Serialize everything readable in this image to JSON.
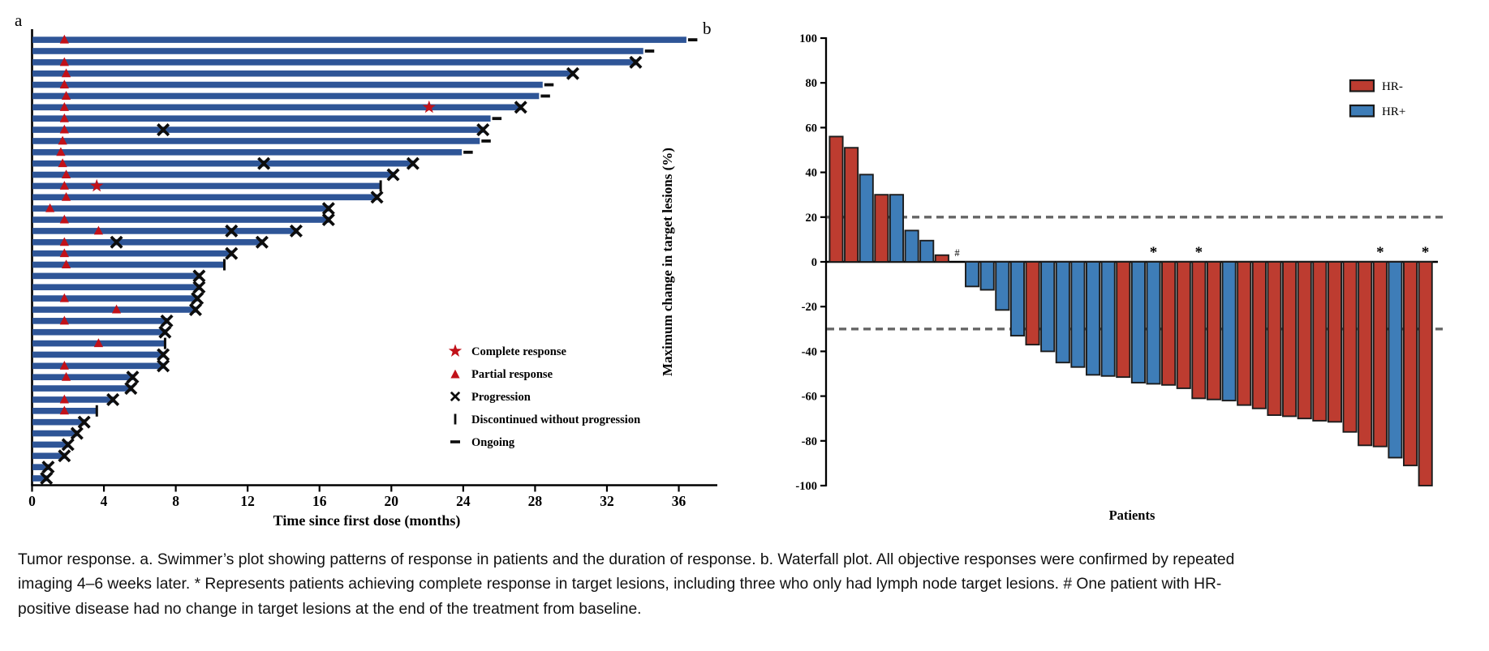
{
  "figure": {
    "panel_a_label": "a",
    "panel_b_label": "b"
  },
  "caption": {
    "text": "Tumor response. a. Swimmer’s plot showing patterns of response in patients and the duration of response. b. Waterfall plot. All objective responses were confirmed by repeated imaging 4–6 weeks later. * Represents patients achieving complete response in target lesions, including three who only had lymph node target lesions. # One patient with HR-positive disease had no change in target lesions at the end of the treatment from baseline."
  },
  "chart_data": [
    {
      "type": "bar",
      "subtype": "swimmer",
      "orientation": "horizontal",
      "xlabel": "Time since first dose (months)",
      "xticks": [
        0,
        4,
        8,
        12,
        16,
        20,
        24,
        28,
        32,
        36
      ],
      "xlim": [
        0,
        38
      ],
      "bar_color": "#2e5597",
      "marker_color": "#c11119",
      "progression_color": "#0d0d0d",
      "legend": [
        {
          "marker": "star",
          "label": "Complete response"
        },
        {
          "marker": "triangle",
          "label": "Partial response"
        },
        {
          "marker": "x",
          "label": "Progression"
        },
        {
          "marker": "bar",
          "label": "Discontinued without progression"
        },
        {
          "marker": "dash",
          "label": "Ongoing"
        }
      ],
      "patients": [
        {
          "end": 36.4,
          "pr": 1.8,
          "ongoing": true
        },
        {
          "end": 34.0,
          "ongoing": true
        },
        {
          "end": 33.6,
          "pr": 1.8,
          "progression": [
            33.6
          ]
        },
        {
          "end": 30.1,
          "pr": 1.9,
          "progression": [
            30.1
          ]
        },
        {
          "end": 28.4,
          "pr": 1.8,
          "ongoing": true
        },
        {
          "end": 28.2,
          "pr": 1.9,
          "ongoing": true
        },
        {
          "end": 27.2,
          "pr": 1.8,
          "cr": 22.1,
          "progression": [
            27.2
          ]
        },
        {
          "end": 25.5,
          "pr": 1.8,
          "ongoing": true
        },
        {
          "end": 25.1,
          "pr": 1.8,
          "progression": [
            7.3,
            25.1
          ]
        },
        {
          "end": 24.9,
          "pr": 1.7,
          "ongoing": true
        },
        {
          "end": 23.9,
          "pr": 1.6,
          "ongoing": true
        },
        {
          "end": 21.2,
          "pr": 1.7,
          "progression": [
            12.9,
            21.2
          ]
        },
        {
          "end": 20.1,
          "pr": 1.9,
          "progression": [
            20.1
          ]
        },
        {
          "end": 19.4,
          "pr": 1.8,
          "cr": 3.6,
          "discontinued": true
        },
        {
          "end": 19.2,
          "pr": 1.9,
          "progression": [
            19.2
          ]
        },
        {
          "end": 16.5,
          "pr": 1.0,
          "progression": [
            16.5
          ]
        },
        {
          "end": 16.5,
          "pr": 1.8,
          "progression": [
            16.5
          ]
        },
        {
          "end": 14.7,
          "pr": 3.7,
          "progression": [
            11.1,
            14.7
          ]
        },
        {
          "end": 12.8,
          "pr": 1.8,
          "progression": [
            4.7,
            12.8
          ]
        },
        {
          "end": 11.1,
          "pr": 1.8,
          "progression": [
            11.1
          ]
        },
        {
          "end": 10.7,
          "pr": 1.9,
          "discontinued": true
        },
        {
          "end": 9.3,
          "progression": [
            9.3
          ]
        },
        {
          "end": 9.3,
          "progression": [
            9.3
          ]
        },
        {
          "end": 9.2,
          "pr": 1.8,
          "progression": [
            9.2
          ]
        },
        {
          "end": 9.1,
          "pr": 4.7,
          "progression": [
            9.1
          ]
        },
        {
          "end": 7.5,
          "pr": 1.8,
          "progression": [
            7.5
          ]
        },
        {
          "end": 7.4,
          "progression": [
            7.4
          ]
        },
        {
          "end": 7.4,
          "pr": 3.7,
          "discontinued": true
        },
        {
          "end": 7.3,
          "progression": [
            7.3
          ]
        },
        {
          "end": 7.3,
          "pr": 1.8,
          "progression": [
            7.3
          ]
        },
        {
          "end": 5.6,
          "pr": 1.9,
          "progression": [
            5.6
          ]
        },
        {
          "end": 5.5,
          "progression": [
            5.5
          ]
        },
        {
          "end": 4.5,
          "pr": 1.8,
          "progression": [
            4.5
          ]
        },
        {
          "end": 3.6,
          "pr": 1.8,
          "discontinued": true
        },
        {
          "end": 2.9,
          "progression": [
            2.9
          ]
        },
        {
          "end": 2.5,
          "progression": [
            2.5
          ]
        },
        {
          "end": 2.0,
          "progression": [
            2.0
          ]
        },
        {
          "end": 1.8,
          "progression": [
            1.8
          ]
        },
        {
          "end": 0.9,
          "progression": [
            0.9
          ]
        },
        {
          "end": 0.8,
          "progression": [
            0.8
          ]
        }
      ]
    },
    {
      "type": "bar",
      "subtype": "waterfall",
      "ylabel": "Maximum change in target lesions (%)",
      "xlabel": "Patients",
      "ylim": [
        -100,
        100
      ],
      "yticks": [
        100,
        80,
        60,
        40,
        20,
        0,
        -20,
        -40,
        -60,
        -80,
        -100
      ],
      "ref_lines": [
        {
          "y": 20,
          "style": "dashed",
          "color": "#666666"
        },
        {
          "y": -30,
          "style": "dashed",
          "color": "#666666"
        }
      ],
      "legend": [
        {
          "label": "HR-",
          "color": "#bd3c30"
        },
        {
          "label": "HR+",
          "color": "#3e7db8"
        }
      ],
      "colors": {
        "HR-": "#bd3c30",
        "HR+": "#3e7db8"
      },
      "annotations": {
        "zero_change_symbol": "#",
        "zero_change_index": 9,
        "complete_response_symbol": "*",
        "complete_response_indices": [
          22,
          25,
          37,
          40
        ]
      },
      "patients": [
        {
          "value": 56,
          "hr": "HR-"
        },
        {
          "value": 51,
          "hr": "HR-"
        },
        {
          "value": 39,
          "hr": "HR+"
        },
        {
          "value": 30,
          "hr": "HR-"
        },
        {
          "value": 30,
          "hr": "HR+"
        },
        {
          "value": 14,
          "hr": "HR+"
        },
        {
          "value": 9.5,
          "hr": "HR+"
        },
        {
          "value": 3,
          "hr": "HR-"
        },
        {
          "value": 0,
          "hr": "HR+"
        },
        {
          "value": -11,
          "hr": "HR+"
        },
        {
          "value": -12.5,
          "hr": "HR+"
        },
        {
          "value": -21.5,
          "hr": "HR+"
        },
        {
          "value": -33,
          "hr": "HR+"
        },
        {
          "value": -37,
          "hr": "HR-"
        },
        {
          "value": -40,
          "hr": "HR+"
        },
        {
          "value": -45,
          "hr": "HR+"
        },
        {
          "value": -47,
          "hr": "HR+"
        },
        {
          "value": -50.5,
          "hr": "HR+"
        },
        {
          "value": -51,
          "hr": "HR+"
        },
        {
          "value": -51.5,
          "hr": "HR-"
        },
        {
          "value": -54,
          "hr": "HR+"
        },
        {
          "value": -54.5,
          "hr": "HR+"
        },
        {
          "value": -55,
          "hr": "HR-"
        },
        {
          "value": -56.5,
          "hr": "HR-"
        },
        {
          "value": -61,
          "hr": "HR-"
        },
        {
          "value": -61.5,
          "hr": "HR-"
        },
        {
          "value": -62,
          "hr": "HR+"
        },
        {
          "value": -64,
          "hr": "HR-"
        },
        {
          "value": -65.5,
          "hr": "HR-"
        },
        {
          "value": -68.5,
          "hr": "HR-"
        },
        {
          "value": -69,
          "hr": "HR-"
        },
        {
          "value": -70,
          "hr": "HR-"
        },
        {
          "value": -71,
          "hr": "HR-"
        },
        {
          "value": -71.5,
          "hr": "HR-"
        },
        {
          "value": -76,
          "hr": "HR-"
        },
        {
          "value": -82,
          "hr": "HR-"
        },
        {
          "value": -82.5,
          "hr": "HR-"
        },
        {
          "value": -87.5,
          "hr": "HR+"
        },
        {
          "value": -91,
          "hr": "HR-"
        },
        {
          "value": -100,
          "hr": "HR-"
        }
      ]
    }
  ]
}
